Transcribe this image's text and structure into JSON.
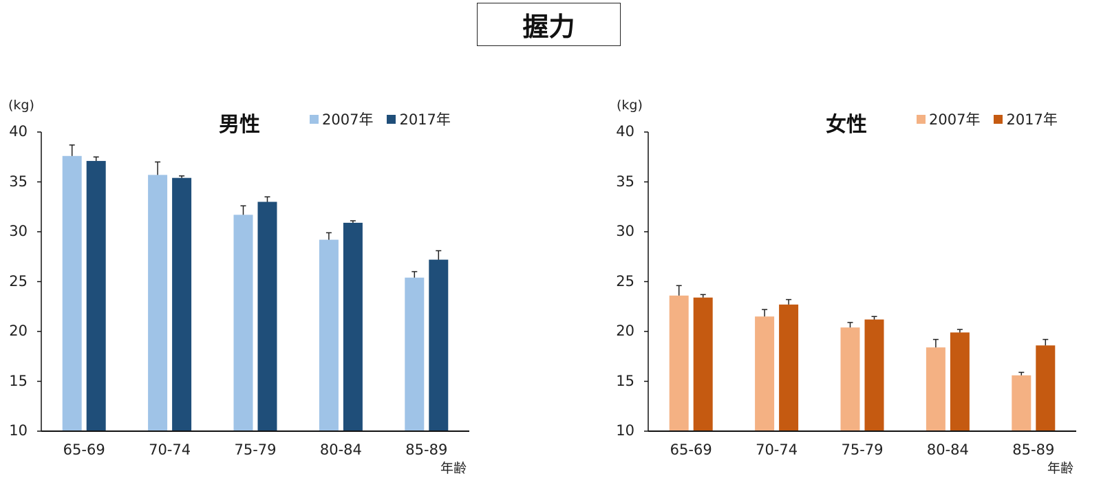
{
  "title": "握力",
  "colors": {
    "male_2007": "#9fc3e7",
    "male_2017": "#1f4e79",
    "female_2007": "#f4b183",
    "female_2017": "#c55a11",
    "axis": "#111111"
  },
  "panels": [
    {
      "id": "male",
      "title": "男性",
      "unit": "(kg)",
      "xaxis_title": "年齢",
      "legend": [
        "2007年",
        "2017年"
      ]
    },
    {
      "id": "female",
      "title": "女性",
      "unit": "(kg)",
      "xaxis_title": "年齢",
      "legend": [
        "2007年",
        "2017年"
      ]
    }
  ],
  "chart_data": [
    {
      "type": "bar",
      "title": "男性",
      "suptitle": "握力",
      "xlabel": "年齢",
      "ylabel": "(kg)",
      "ylim": [
        10,
        40
      ],
      "yticks": [
        10,
        15,
        20,
        25,
        30,
        35,
        40
      ],
      "grid": false,
      "legend_position": "top-right",
      "categories": [
        "65-69",
        "70-74",
        "75-79",
        "80-84",
        "85-89"
      ],
      "series": [
        {
          "name": "2007年",
          "color": "#9fc3e7",
          "values": [
            37.6,
            35.7,
            31.7,
            29.2,
            25.4
          ],
          "error_plus": [
            1.1,
            1.3,
            0.9,
            0.7,
            0.6
          ]
        },
        {
          "name": "2017年",
          "color": "#1f4e79",
          "values": [
            37.1,
            35.4,
            33.0,
            30.9,
            27.2
          ],
          "error_plus": [
            0.4,
            0.2,
            0.5,
            0.2,
            0.9
          ]
        }
      ]
    },
    {
      "type": "bar",
      "title": "女性",
      "suptitle": "握力",
      "xlabel": "年齢",
      "ylabel": "(kg)",
      "ylim": [
        10,
        40
      ],
      "yticks": [
        10,
        15,
        20,
        25,
        30,
        35,
        40
      ],
      "grid": false,
      "legend_position": "top-right",
      "categories": [
        "65-69",
        "70-74",
        "75-79",
        "80-84",
        "85-89"
      ],
      "series": [
        {
          "name": "2007年",
          "color": "#f4b183",
          "values": [
            23.6,
            21.5,
            20.4,
            18.4,
            15.6
          ],
          "error_plus": [
            1.0,
            0.7,
            0.5,
            0.8,
            0.3
          ]
        },
        {
          "name": "2017年",
          "color": "#c55a11",
          "values": [
            23.4,
            22.7,
            21.2,
            19.9,
            18.6
          ],
          "error_plus": [
            0.3,
            0.5,
            0.3,
            0.3,
            0.6
          ]
        }
      ]
    }
  ]
}
